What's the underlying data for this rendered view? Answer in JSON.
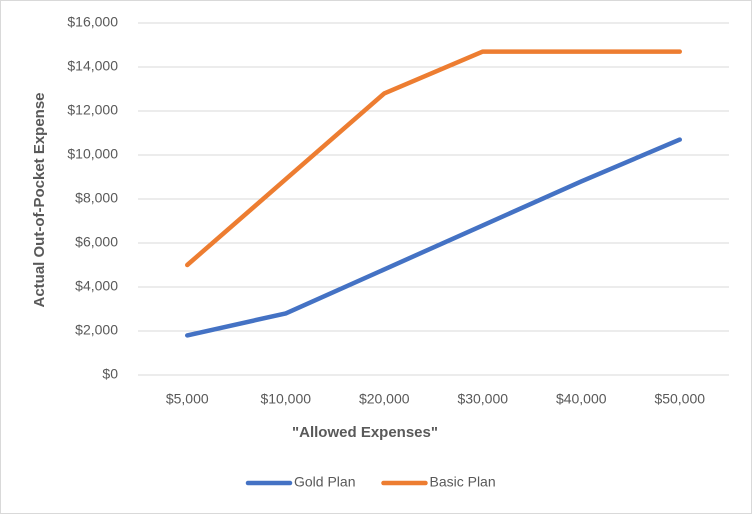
{
  "chart_data": {
    "type": "line",
    "x_label": "\"Allowed Expenses\"",
    "y_label": "Actual Out-of-Pocket Expense",
    "categories": [
      "$5,000",
      "$10,000",
      "$20,000",
      "$30,000",
      "$40,000",
      "$50,000"
    ],
    "series": [
      {
        "name": "Gold Plan",
        "color": "#4472c4",
        "values": [
          1800,
          2800,
          4800,
          6800,
          8800,
          10700
        ]
      },
      {
        "name": "Basic Plan",
        "color": "#ed7d31",
        "values": [
          5000,
          8900,
          12800,
          14700,
          14700,
          14700
        ]
      }
    ],
    "ylim": [
      0,
      16000
    ],
    "yticks": [
      {
        "value": 0,
        "label": "$0"
      },
      {
        "value": 2000,
        "label": "$2,000"
      },
      {
        "value": 4000,
        "label": "$4,000"
      },
      {
        "value": 6000,
        "label": "$6,000"
      },
      {
        "value": 8000,
        "label": "$8,000"
      },
      {
        "value": 10000,
        "label": "$10,000"
      },
      {
        "value": 12000,
        "label": "$12,000"
      },
      {
        "value": 14000,
        "label": "$14,000"
      },
      {
        "value": 16000,
        "label": "$16,000"
      }
    ],
    "grid": true,
    "legend": "bottom"
  }
}
